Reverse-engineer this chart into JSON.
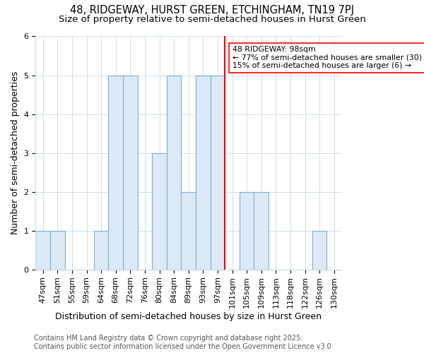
{
  "title": "48, RIDGEWAY, HURST GREEN, ETCHINGHAM, TN19 7PJ",
  "subtitle": "Size of property relative to semi-detached houses in Hurst Green",
  "xlabel": "Distribution of semi-detached houses by size in Hurst Green",
  "ylabel": "Number of semi-detached properties",
  "categories": [
    "47sqm",
    "51sqm",
    "55sqm",
    "59sqm",
    "64sqm",
    "68sqm",
    "72sqm",
    "76sqm",
    "80sqm",
    "84sqm",
    "89sqm",
    "93sqm",
    "97sqm",
    "101sqm",
    "105sqm",
    "109sqm",
    "113sqm",
    "118sqm",
    "122sqm",
    "126sqm",
    "130sqm"
  ],
  "values": [
    1,
    1,
    0,
    0,
    1,
    5,
    5,
    0,
    3,
    5,
    2,
    5,
    5,
    0,
    2,
    2,
    0,
    0,
    0,
    1,
    0
  ],
  "bar_color": "#dce9f7",
  "bar_edge_color": "#7bafd4",
  "red_line_x": 12.5,
  "annotation_title": "48 RIDGEWAY: 98sqm",
  "annotation_line1": "← 77% of semi-detached houses are smaller (30)",
  "annotation_line2": "15% of semi-detached houses are larger (6) →",
  "ylim": [
    0,
    6
  ],
  "yticks": [
    0,
    1,
    2,
    3,
    4,
    5,
    6
  ],
  "footer_line1": "Contains HM Land Registry data © Crown copyright and database right 2025.",
  "footer_line2": "Contains public sector information licensed under the Open Government Licence v3.0.",
  "bg_color": "#ffffff",
  "grid_color": "#c8d8e8",
  "title_fontsize": 10.5,
  "subtitle_fontsize": 9.5,
  "axis_label_fontsize": 9,
  "tick_fontsize": 8,
  "footer_fontsize": 7
}
